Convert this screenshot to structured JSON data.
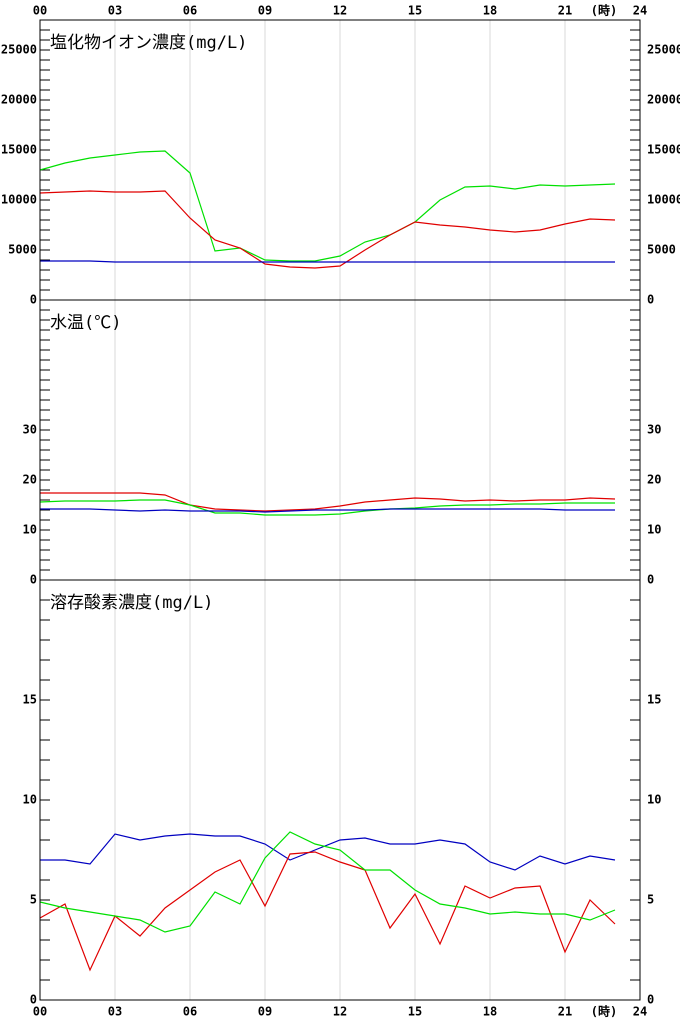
{
  "chart_data": [
    {
      "type": "line",
      "title": "塩化物イオン濃度(mg/L)",
      "x": [
        0,
        1,
        2,
        3,
        4,
        5,
        6,
        7,
        8,
        9,
        10,
        11,
        12,
        13,
        14,
        15,
        16,
        17,
        18,
        19,
        20,
        21,
        22,
        23
      ],
      "xlim": [
        0,
        24
      ],
      "xticks": [
        {
          "value": 0,
          "label": "00"
        },
        {
          "value": 3,
          "label": "03"
        },
        {
          "value": 6,
          "label": "06"
        },
        {
          "value": 9,
          "label": "09"
        },
        {
          "value": 12,
          "label": "12"
        },
        {
          "value": 15,
          "label": "15"
        },
        {
          "value": 18,
          "label": "18"
        },
        {
          "value": 21,
          "label": "21"
        },
        {
          "value": 24,
          "label": "24"
        }
      ],
      "x_labels": "top",
      "x_unit_label": "(時)",
      "ylim": [
        0,
        28000
      ],
      "yticks": [
        0,
        5000,
        10000,
        15000,
        20000,
        25000
      ],
      "minor_ytick_step": 1000,
      "grid": true,
      "series": [
        {
          "color": "#00e000",
          "values": [
            13000,
            13700,
            14200,
            14500,
            14800,
            14900,
            12700,
            4900,
            5200,
            4000,
            3900,
            3900,
            4400,
            5800,
            6500,
            7800,
            10000,
            11300,
            11400,
            11100,
            11500,
            11400,
            11500,
            11600
          ]
        },
        {
          "color": "#e00000",
          "values": [
            10700,
            10800,
            10900,
            10800,
            10800,
            10900,
            8200,
            6000,
            5200,
            3600,
            3300,
            3200,
            3400,
            5000,
            6500,
            7800,
            7500,
            7300,
            7000,
            6800,
            7000,
            7600,
            8100,
            8000
          ]
        },
        {
          "color": "#0000c0",
          "values": [
            3900,
            3900,
            3900,
            3800,
            3800,
            3800,
            3800,
            3800,
            3800,
            3800,
            3800,
            3800,
            3800,
            3800,
            3800,
            3800,
            3800,
            3800,
            3800,
            3800,
            3800,
            3800,
            3800,
            3800
          ]
        }
      ]
    },
    {
      "type": "line",
      "title": "水温(℃)",
      "x": [
        0,
        1,
        2,
        3,
        4,
        5,
        6,
        7,
        8,
        9,
        10,
        11,
        12,
        13,
        14,
        15,
        16,
        17,
        18,
        19,
        20,
        21,
        22,
        23
      ],
      "xlim": [
        0,
        24
      ],
      "xticks": [
        {
          "value": 0,
          "label": "00"
        },
        {
          "value": 3,
          "label": "03"
        },
        {
          "value": 6,
          "label": "06"
        },
        {
          "value": 9,
          "label": "09"
        },
        {
          "value": 12,
          "label": "12"
        },
        {
          "value": 15,
          "label": "15"
        },
        {
          "value": 18,
          "label": "18"
        },
        {
          "value": 21,
          "label": "21"
        },
        {
          "value": 24,
          "label": "24"
        }
      ],
      "x_labels": "none",
      "ylim": [
        0,
        56
      ],
      "yticks": [
        0,
        10,
        20,
        30
      ],
      "minor_ytick_step": 2,
      "grid": true,
      "series": [
        {
          "color": "#e00000",
          "values": [
            17.4,
            17.4,
            17.4,
            17.4,
            17.4,
            17,
            15,
            14.2,
            14,
            13.8,
            14,
            14.2,
            14.8,
            15.6,
            16,
            16.4,
            16.2,
            15.8,
            16,
            15.8,
            16,
            16,
            16.4,
            16.2
          ]
        },
        {
          "color": "#00e000",
          "values": [
            15.6,
            15.8,
            15.8,
            15.8,
            16,
            16,
            15,
            13.4,
            13.4,
            13,
            13,
            13,
            13.2,
            13.8,
            14.2,
            14.4,
            14.8,
            15,
            15,
            15.2,
            15.2,
            15.4,
            15.4,
            15.4
          ]
        },
        {
          "color": "#0000c0",
          "values": [
            14.2,
            14.2,
            14.2,
            14,
            13.8,
            14,
            13.8,
            13.8,
            13.8,
            13.6,
            13.8,
            14,
            14,
            14,
            14.2,
            14.2,
            14.2,
            14.2,
            14.2,
            14.2,
            14.2,
            14,
            14,
            14
          ]
        }
      ]
    },
    {
      "type": "line",
      "title": "溶存酸素濃度(mg/L)",
      "x": [
        0,
        1,
        2,
        3,
        4,
        5,
        6,
        7,
        8,
        9,
        10,
        11,
        12,
        13,
        14,
        15,
        16,
        17,
        18,
        19,
        20,
        21,
        22,
        23
      ],
      "xlim": [
        0,
        24
      ],
      "xticks": [
        {
          "value": 0,
          "label": "00"
        },
        {
          "value": 3,
          "label": "03"
        },
        {
          "value": 6,
          "label": "06"
        },
        {
          "value": 9,
          "label": "09"
        },
        {
          "value": 12,
          "label": "12"
        },
        {
          "value": 15,
          "label": "15"
        },
        {
          "value": 18,
          "label": "18"
        },
        {
          "value": 21,
          "label": "21"
        },
        {
          "value": 24,
          "label": "24"
        }
      ],
      "x_labels": "bottom",
      "x_unit_label": "(時)",
      "ylim": [
        0,
        21
      ],
      "yticks": [
        0,
        5,
        10,
        15
      ],
      "minor_ytick_step": 1,
      "grid": true,
      "series": [
        {
          "color": "#0000c0",
          "values": [
            7.0,
            7.0,
            6.8,
            8.3,
            8.0,
            8.2,
            8.3,
            8.2,
            8.2,
            7.8,
            7.0,
            7.5,
            8.0,
            8.1,
            7.8,
            7.8,
            8.0,
            7.8,
            6.9,
            6.5,
            7.2,
            6.8,
            7.2,
            7.0
          ]
        },
        {
          "color": "#e00000",
          "values": [
            4.1,
            4.8,
            1.5,
            4.2,
            3.2,
            4.6,
            5.5,
            6.4,
            7.0,
            4.7,
            7.3,
            7.4,
            6.9,
            6.5,
            3.6,
            5.3,
            2.8,
            5.7,
            5.1,
            5.6,
            5.7,
            2.4,
            5.0,
            3.8
          ]
        },
        {
          "color": "#00e000",
          "values": [
            4.9,
            4.6,
            4.4,
            4.2,
            4.0,
            3.4,
            3.7,
            5.4,
            4.8,
            7.1,
            8.4,
            7.8,
            7.5,
            6.5,
            6.5,
            5.5,
            4.8,
            4.6,
            4.3,
            4.4,
            4.3,
            4.3,
            4.0,
            4.5
          ]
        }
      ]
    }
  ]
}
